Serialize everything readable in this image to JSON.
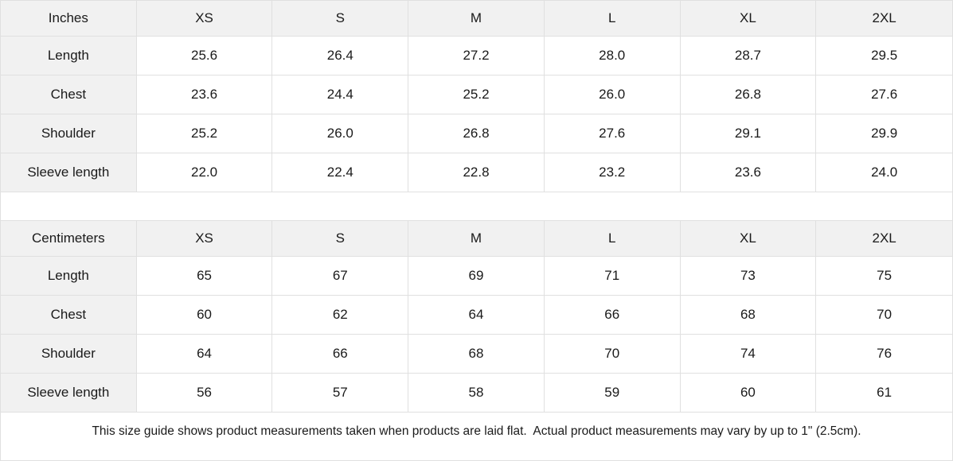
{
  "colors": {
    "header_bg": "#f1f1f1",
    "border": "#e0e0e0",
    "text": "#1a1a1a",
    "background": "#ffffff"
  },
  "tables": [
    {
      "unit_label": "Inches",
      "columns": [
        "XS",
        "S",
        "M",
        "L",
        "XL",
        "2XL"
      ],
      "rows": [
        {
          "label": "Length",
          "values": [
            "25.6",
            "26.4",
            "27.2",
            "28.0",
            "28.7",
            "29.5"
          ]
        },
        {
          "label": "Chest",
          "values": [
            "23.6",
            "24.4",
            "25.2",
            "26.0",
            "26.8",
            "27.6"
          ]
        },
        {
          "label": "Shoulder",
          "values": [
            "25.2",
            "26.0",
            "26.8",
            "27.6",
            "29.1",
            "29.9"
          ]
        },
        {
          "label": "Sleeve length",
          "values": [
            "22.0",
            "22.4",
            "22.8",
            "23.2",
            "23.6",
            "24.0"
          ]
        }
      ]
    },
    {
      "unit_label": "Centimeters",
      "columns": [
        "XS",
        "S",
        "M",
        "L",
        "XL",
        "2XL"
      ],
      "rows": [
        {
          "label": "Length",
          "values": [
            "65",
            "67",
            "69",
            "71",
            "73",
            "75"
          ]
        },
        {
          "label": "Chest",
          "values": [
            "60",
            "62",
            "64",
            "66",
            "68",
            "70"
          ]
        },
        {
          "label": "Shoulder",
          "values": [
            "64",
            "66",
            "68",
            "70",
            "74",
            "76"
          ]
        },
        {
          "label": "Sleeve length",
          "values": [
            "56",
            "57",
            "58",
            "59",
            "60",
            "61"
          ]
        }
      ]
    }
  ],
  "footer": {
    "note": "This size guide shows product measurements taken when products are laid flat.  Actual product measurements may vary by up to 1\" (2.5cm)."
  }
}
